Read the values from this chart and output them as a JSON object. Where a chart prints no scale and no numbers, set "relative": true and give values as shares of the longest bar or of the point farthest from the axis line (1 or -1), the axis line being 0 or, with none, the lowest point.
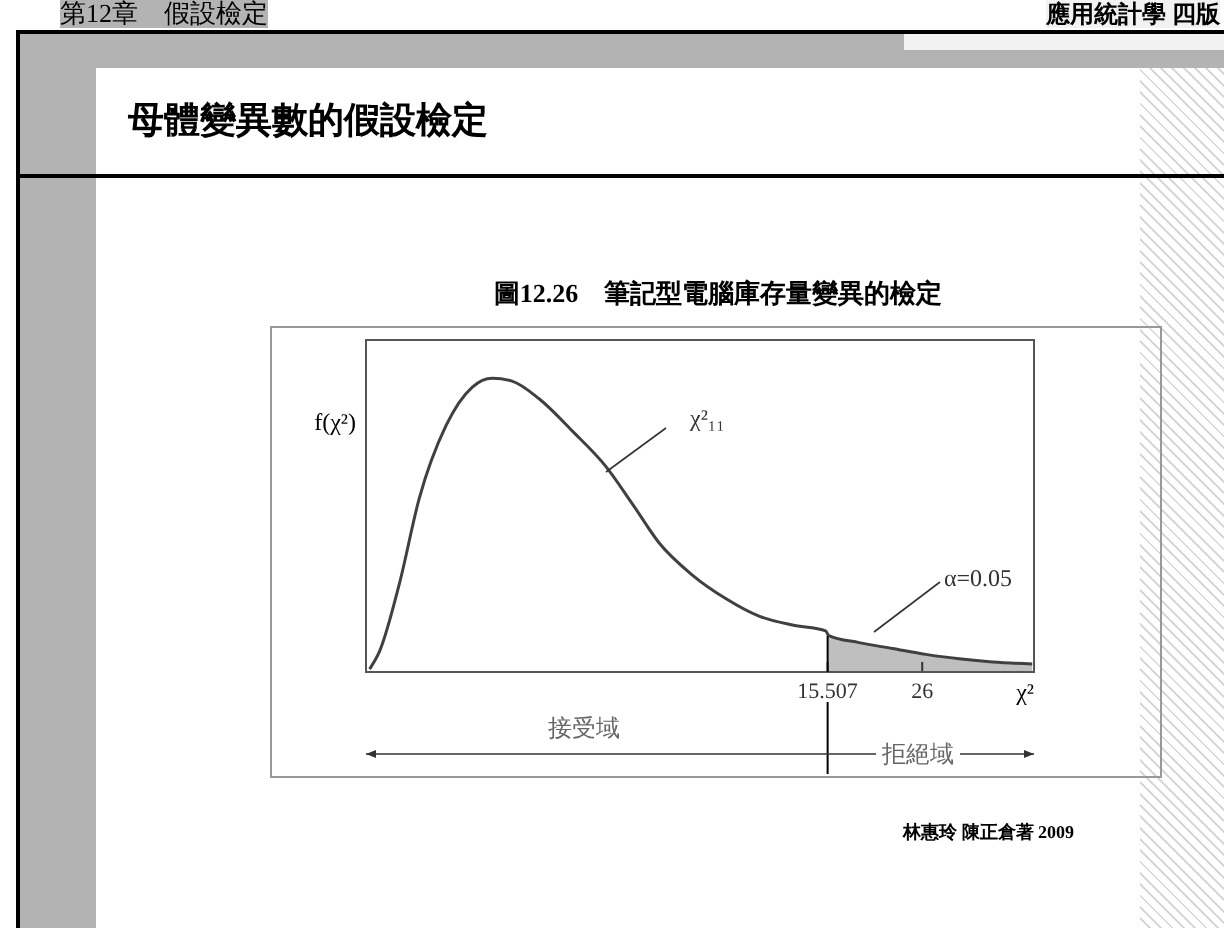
{
  "chart_data": {
    "type": "line",
    "title": "母體變異數的假設檢定",
    "subtitle": "圖12.26　筆記型電腦庫存量變異的檢定",
    "ylabel": "f(χ²)",
    "xlabel": "χ²",
    "relative": true,
    "xlim": [
      -35.7,
      38.4
    ],
    "xticks": [
      15.507,
      26
    ],
    "series": [
      {
        "type": "line",
        "color": "#404040",
        "x": [
          -35.3,
          -34.2,
          -32.0,
          -29.8,
          -26.8,
          -23.9,
          -21.7,
          -19.5,
          -16.5,
          -12.8,
          -9.1,
          -6.1,
          -3.2,
          0.5,
          4.2,
          7.9,
          11.6,
          15.3,
          15.6,
          19.0,
          22.7,
          26.4,
          30.1,
          33.8,
          38.2
        ],
        "values": [
          0.01,
          0.07,
          0.3,
          0.59,
          0.84,
          0.97,
          1.0,
          0.99,
          0.93,
          0.82,
          0.7,
          0.57,
          0.44,
          0.33,
          0.25,
          0.19,
          0.16,
          0.14,
          0.125,
          0.1,
          0.08,
          0.06,
          0.045,
          0.034,
          0.027
        ]
      },
      {
        "type": "area",
        "color": "#bfbfbf",
        "x": [
          15.507,
          19.0,
          22.7,
          26.4,
          30.1,
          33.8,
          38.2
        ],
        "values": [
          0.125,
          0.1,
          0.08,
          0.06,
          0.045,
          0.034,
          0.027
        ]
      }
    ],
    "ref_lines": [
      {
        "axis": "x",
        "value": 15.507
      }
    ],
    "annotations": [
      "χ²₁₁",
      "α=0.05",
      "接受域",
      "拒絕域",
      "第12章　假設檢定",
      "應用統計學 四版",
      "林惠玲 陳正倉著 2009"
    ]
  }
}
